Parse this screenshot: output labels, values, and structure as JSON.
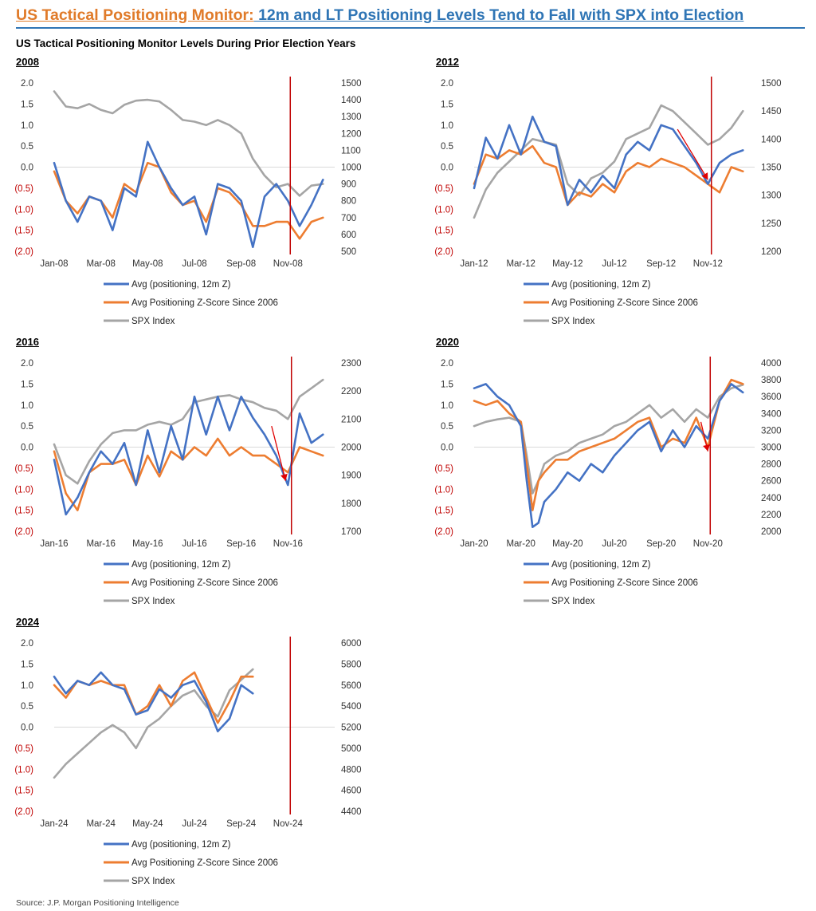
{
  "title": {
    "part1": "US Tactical Positioning Monitor:",
    "part2": " 12m and LT Positioning Levels Tend to Fall with SPX into Election"
  },
  "subtitle": "US Tactical Positioning Monitor Levels During Prior Election Years",
  "source": "Source: J.P. Morgan Positioning Intelligence",
  "colors": {
    "blue": "#4472c4",
    "orange": "#ed7d31",
    "gray": "#a5a5a5",
    "red_line": "#c00000",
    "negative_label": "#c00000"
  },
  "chart_data": [
    {
      "type": "line",
      "title": "2008",
      "left_axis": {
        "ylim": [
          -2,
          2
        ],
        "ticks": [
          "2.0",
          "1.5",
          "1.0",
          "0.5",
          "0.0",
          "(0.5)",
          "(1.0)",
          "(1.5)",
          "(2.0)"
        ]
      },
      "right_axis": {
        "ylim": [
          500,
          1500
        ],
        "ticks": [
          "1500",
          "1400",
          "1300",
          "1200",
          "1100",
          "1000",
          "900",
          "800",
          "700",
          "600",
          "500"
        ]
      },
      "x_ticks": [
        "Jan-08",
        "Mar-08",
        "May-08",
        "Jul-08",
        "Sep-08",
        "Nov-08"
      ],
      "election_month": 10.1,
      "arrows": [],
      "series": [
        {
          "name": "Avg (positioning, 12m Z)",
          "axis": "left",
          "color_key": "blue",
          "x": [
            0,
            0.5,
            1,
            1.5,
            2,
            2.5,
            3,
            3.5,
            4,
            4.5,
            5,
            5.5,
            6,
            6.5,
            7,
            7.5,
            8,
            8.5,
            9,
            9.5,
            10,
            10.5,
            11,
            11.5
          ],
          "values": [
            0.1,
            -0.8,
            -1.3,
            -0.7,
            -0.8,
            -1.5,
            -0.5,
            -0.7,
            0.6,
            0.0,
            -0.5,
            -0.9,
            -0.7,
            -1.6,
            -0.4,
            -0.5,
            -0.8,
            -1.9,
            -0.7,
            -0.4,
            -0.8,
            -1.4,
            -0.9,
            -0.3
          ]
        },
        {
          "name": "Avg Positioning Z-Score Since 2006",
          "axis": "left",
          "color_key": "orange",
          "x": [
            0,
            0.5,
            1,
            1.5,
            2,
            2.5,
            3,
            3.5,
            4,
            4.5,
            5,
            5.5,
            6,
            6.5,
            7,
            7.5,
            8,
            8.5,
            9,
            9.5,
            10,
            10.5,
            11,
            11.5
          ],
          "values": [
            -0.1,
            -0.8,
            -1.1,
            -0.7,
            -0.8,
            -1.2,
            -0.4,
            -0.6,
            0.1,
            0.0,
            -0.6,
            -0.9,
            -0.8,
            -1.3,
            -0.5,
            -0.6,
            -0.9,
            -1.4,
            -1.4,
            -1.3,
            -1.3,
            -1.7,
            -1.3,
            -1.2
          ]
        },
        {
          "name": "SPX Index",
          "axis": "right",
          "color_key": "gray",
          "x": [
            0,
            0.5,
            1,
            1.5,
            2,
            2.5,
            3,
            3.5,
            4,
            4.5,
            5,
            5.5,
            6,
            6.5,
            7,
            7.5,
            8,
            8.5,
            9,
            9.5,
            10,
            10.5,
            11,
            11.5
          ],
          "values": [
            1450,
            1360,
            1350,
            1375,
            1340,
            1320,
            1370,
            1395,
            1400,
            1390,
            1340,
            1280,
            1270,
            1250,
            1280,
            1250,
            1200,
            1050,
            950,
            880,
            900,
            830,
            890,
            900
          ]
        }
      ]
    },
    {
      "type": "line",
      "title": "2012",
      "left_axis": {
        "ylim": [
          -2,
          2
        ],
        "ticks": [
          "2.0",
          "1.5",
          "1.0",
          "0.5",
          "0.0",
          "(0.5)",
          "(1.0)",
          "(1.5)",
          "(2.0)"
        ]
      },
      "right_axis": {
        "ylim": [
          1200,
          1500
        ],
        "ticks": [
          "1500",
          "1450",
          "1400",
          "1350",
          "1300",
          "1250",
          "1200"
        ]
      },
      "x_ticks": [
        "Jan-12",
        "Mar-12",
        "May-12",
        "Jul-12",
        "Sep-12",
        "Nov-12"
      ],
      "election_month": 10.15,
      "arrows": [
        {
          "from": [
            8.7,
            0.9
          ],
          "to": [
            10.0,
            -0.3
          ]
        }
      ],
      "series": [
        {
          "name": "Avg (positioning, 12m Z)",
          "axis": "left",
          "color_key": "blue",
          "x": [
            0,
            0.5,
            1,
            1.5,
            2,
            2.5,
            3,
            3.5,
            4,
            4.5,
            5,
            5.5,
            6,
            6.5,
            7,
            7.5,
            8,
            8.5,
            9,
            9.5,
            10,
            10.5,
            11,
            11.5
          ],
          "values": [
            -0.5,
            0.7,
            0.2,
            1.0,
            0.3,
            1.2,
            0.6,
            0.5,
            -0.9,
            -0.3,
            -0.6,
            -0.2,
            -0.5,
            0.3,
            0.6,
            0.4,
            1.0,
            0.9,
            0.5,
            0.1,
            -0.4,
            0.1,
            0.3,
            0.4
          ]
        },
        {
          "name": "Avg Positioning Z-Score Since 2006",
          "axis": "left",
          "color_key": "orange",
          "x": [
            0,
            0.5,
            1,
            1.5,
            2,
            2.5,
            3,
            3.5,
            4,
            4.5,
            5,
            5.5,
            6,
            6.5,
            7,
            7.5,
            8,
            8.5,
            9,
            9.5,
            10,
            10.5,
            11,
            11.5
          ],
          "values": [
            -0.4,
            0.3,
            0.2,
            0.4,
            0.3,
            0.5,
            0.1,
            0.0,
            -0.9,
            -0.6,
            -0.7,
            -0.4,
            -0.6,
            -0.1,
            0.1,
            0.0,
            0.2,
            0.1,
            0.0,
            -0.2,
            -0.4,
            -0.6,
            0.0,
            -0.1
          ]
        },
        {
          "name": "SPX Index",
          "axis": "right",
          "color_key": "gray",
          "x": [
            0,
            0.5,
            1,
            1.5,
            2,
            2.5,
            3,
            3.5,
            4,
            4.5,
            5,
            5.5,
            6,
            6.5,
            7,
            7.5,
            8,
            8.5,
            9,
            9.5,
            10,
            10.5,
            11,
            11.5
          ],
          "values": [
            1260,
            1310,
            1340,
            1360,
            1380,
            1400,
            1395,
            1390,
            1320,
            1300,
            1330,
            1340,
            1360,
            1400,
            1410,
            1420,
            1460,
            1450,
            1430,
            1410,
            1390,
            1400,
            1420,
            1450
          ]
        }
      ]
    },
    {
      "type": "line",
      "title": "2016",
      "left_axis": {
        "ylim": [
          -2,
          2
        ],
        "ticks": [
          "2.0",
          "1.5",
          "1.0",
          "0.5",
          "0.0",
          "(0.5)",
          "(1.0)",
          "(1.5)",
          "(2.0)"
        ]
      },
      "right_axis": {
        "ylim": [
          1700,
          2300
        ],
        "ticks": [
          "2300",
          "2200",
          "2100",
          "2000",
          "1900",
          "1800",
          "1700"
        ]
      },
      "x_ticks": [
        "Jan-16",
        "Mar-16",
        "May-16",
        "Jul-16",
        "Sep-16",
        "Nov-16"
      ],
      "election_month": 10.15,
      "arrows": [
        {
          "from": [
            9.3,
            0.5
          ],
          "to": [
            9.9,
            -0.8
          ]
        }
      ],
      "series": [
        {
          "name": "Avg (positioning, 12m Z)",
          "axis": "left",
          "color_key": "blue",
          "x": [
            0,
            0.5,
            1,
            1.5,
            2,
            2.5,
            3,
            3.5,
            4,
            4.5,
            5,
            5.5,
            6,
            6.5,
            7,
            7.5,
            8,
            8.5,
            9,
            9.5,
            10,
            10.5,
            11,
            11.5
          ],
          "values": [
            -0.3,
            -1.6,
            -1.2,
            -0.6,
            -0.1,
            -0.4,
            0.1,
            -0.9,
            0.4,
            -0.6,
            0.5,
            -0.3,
            1.2,
            0.3,
            1.2,
            0.4,
            1.2,
            0.7,
            0.3,
            -0.2,
            -0.9,
            0.8,
            0.1,
            0.3
          ]
        },
        {
          "name": "Avg Positioning Z-Score Since 2006",
          "axis": "left",
          "color_key": "orange",
          "x": [
            0,
            0.5,
            1,
            1.5,
            2,
            2.5,
            3,
            3.5,
            4,
            4.5,
            5,
            5.5,
            6,
            6.5,
            7,
            7.5,
            8,
            8.5,
            9,
            9.5,
            10,
            10.5,
            11,
            11.5
          ],
          "values": [
            -0.1,
            -1.1,
            -1.5,
            -0.6,
            -0.4,
            -0.4,
            -0.3,
            -0.9,
            -0.2,
            -0.7,
            -0.1,
            -0.3,
            0.0,
            -0.2,
            0.2,
            -0.2,
            0.0,
            -0.2,
            -0.2,
            -0.4,
            -0.6,
            0.0,
            -0.1,
            -0.2
          ]
        },
        {
          "name": "SPX Index",
          "axis": "right",
          "color_key": "gray",
          "x": [
            0,
            0.5,
            1,
            1.5,
            2,
            2.5,
            3,
            3.5,
            4,
            4.5,
            5,
            5.5,
            6,
            6.5,
            7,
            7.5,
            8,
            8.5,
            9,
            9.5,
            10,
            10.5,
            11,
            11.5
          ],
          "values": [
            2010,
            1900,
            1870,
            1950,
            2010,
            2050,
            2060,
            2060,
            2080,
            2090,
            2080,
            2100,
            2160,
            2170,
            2180,
            2185,
            2170,
            2160,
            2140,
            2130,
            2100,
            2180,
            2210,
            2240
          ]
        }
      ]
    },
    {
      "type": "line",
      "title": "2020",
      "left_axis": {
        "ylim": [
          -2,
          2
        ],
        "ticks": [
          "2.0",
          "1.5",
          "1.0",
          "0.5",
          "0.0",
          "(0.5)",
          "(1.0)",
          "(1.5)",
          "(2.0)"
        ]
      },
      "right_axis": {
        "ylim": [
          2000,
          4000
        ],
        "ticks": [
          "4000",
          "3800",
          "3600",
          "3400",
          "3200",
          "3000",
          "2800",
          "2600",
          "2400",
          "2200",
          "2000"
        ]
      },
      "x_ticks": [
        "Jan-20",
        "Mar-20",
        "May-20",
        "Jul-20",
        "Sep-20",
        "Nov-20"
      ],
      "election_month": 10.1,
      "arrows": [
        {
          "from": [
            9.7,
            0.6
          ],
          "to": [
            10.0,
            -0.1
          ]
        }
      ],
      "series": [
        {
          "name": "Avg (positioning, 12m Z)",
          "axis": "left",
          "color_key": "blue",
          "x": [
            0,
            0.5,
            1,
            1.5,
            2,
            2.25,
            2.5,
            2.75,
            3,
            3.5,
            4,
            4.5,
            5,
            5.5,
            6,
            6.5,
            7,
            7.5,
            8,
            8.5,
            9,
            9.5,
            10,
            10.5,
            11,
            11.5
          ],
          "values": [
            1.4,
            1.5,
            1.2,
            1.0,
            0.5,
            -0.8,
            -1.9,
            -1.8,
            -1.3,
            -1.0,
            -0.6,
            -0.8,
            -0.4,
            -0.6,
            -0.2,
            0.1,
            0.4,
            0.6,
            -0.1,
            0.4,
            0.0,
            0.5,
            0.2,
            1.1,
            1.5,
            1.3
          ]
        },
        {
          "name": "Avg Positioning Z-Score Since 2006",
          "axis": "left",
          "color_key": "orange",
          "x": [
            0,
            0.5,
            1,
            1.5,
            2,
            2.25,
            2.5,
            2.75,
            3,
            3.5,
            4,
            4.5,
            5,
            5.5,
            6,
            6.5,
            7,
            7.5,
            8,
            8.5,
            9,
            9.5,
            10,
            10.5,
            11,
            11.5
          ],
          "values": [
            1.1,
            1.0,
            1.1,
            0.8,
            0.6,
            -0.4,
            -1.5,
            -0.8,
            -0.6,
            -0.3,
            -0.3,
            -0.1,
            0.0,
            0.1,
            0.2,
            0.4,
            0.6,
            0.7,
            0.0,
            0.2,
            0.1,
            0.7,
            0.0,
            1.1,
            1.6,
            1.5
          ]
        },
        {
          "name": "SPX Index",
          "axis": "right",
          "color_key": "gray",
          "x": [
            0,
            0.5,
            1,
            1.5,
            2,
            2.25,
            2.5,
            2.75,
            3,
            3.5,
            4,
            4.5,
            5,
            5.5,
            6,
            6.5,
            7,
            7.5,
            8,
            8.5,
            9,
            9.5,
            10,
            10.5,
            11,
            11.5
          ],
          "values": [
            3250,
            3300,
            3330,
            3350,
            3300,
            2900,
            2450,
            2600,
            2800,
            2900,
            2950,
            3050,
            3100,
            3150,
            3250,
            3300,
            3400,
            3500,
            3350,
            3450,
            3300,
            3450,
            3350,
            3600,
            3700,
            3740
          ]
        }
      ]
    },
    {
      "type": "line",
      "title": "2024",
      "left_axis": {
        "ylim": [
          -2,
          2
        ],
        "ticks": [
          "2.0",
          "1.5",
          "1.0",
          "0.5",
          "0.0",
          "(0.5)",
          "(1.0)",
          "(1.5)",
          "(2.0)"
        ]
      },
      "right_axis": {
        "ylim": [
          4400,
          6000
        ],
        "ticks": [
          "6000",
          "5800",
          "5600",
          "5400",
          "5200",
          "5000",
          "4800",
          "4600",
          "4400"
        ]
      },
      "x_ticks": [
        "Jan-24",
        "Mar-24",
        "May-24",
        "Jul-24",
        "Sep-24",
        "Nov-24"
      ],
      "election_month": 10.1,
      "arrows": [],
      "series": [
        {
          "name": "Avg (positioning, 12m Z)",
          "axis": "left",
          "color_key": "blue",
          "x": [
            0,
            0.5,
            1,
            1.5,
            2,
            2.5,
            3,
            3.5,
            4,
            4.5,
            5,
            5.5,
            6,
            6.5,
            7,
            7.5,
            8,
            8.5
          ],
          "values": [
            1.2,
            0.8,
            1.1,
            1.0,
            1.3,
            1.0,
            0.9,
            0.3,
            0.4,
            0.9,
            0.7,
            1.0,
            1.1,
            0.6,
            -0.1,
            0.2,
            1.0,
            0.8
          ]
        },
        {
          "name": "Avg Positioning Z-Score Since 2006",
          "axis": "left",
          "color_key": "orange",
          "x": [
            0,
            0.5,
            1,
            1.5,
            2,
            2.5,
            3,
            3.5,
            4,
            4.5,
            5,
            5.5,
            6,
            6.5,
            7,
            7.5,
            8,
            8.5
          ],
          "values": [
            1.0,
            0.7,
            1.1,
            1.0,
            1.1,
            1.0,
            1.0,
            0.3,
            0.5,
            1.0,
            0.5,
            1.1,
            1.3,
            0.7,
            0.1,
            0.6,
            1.2,
            1.2
          ]
        },
        {
          "name": "SPX Index",
          "axis": "right",
          "color_key": "gray",
          "x": [
            0,
            0.5,
            1,
            1.5,
            2,
            2.5,
            3,
            3.5,
            4,
            4.5,
            5,
            5.5,
            6,
            6.5,
            7,
            7.5,
            8,
            8.5
          ],
          "values": [
            4720,
            4850,
            4950,
            5050,
            5150,
            5220,
            5150,
            5000,
            5200,
            5280,
            5400,
            5500,
            5550,
            5400,
            5300,
            5550,
            5650,
            5750
          ]
        }
      ]
    }
  ]
}
